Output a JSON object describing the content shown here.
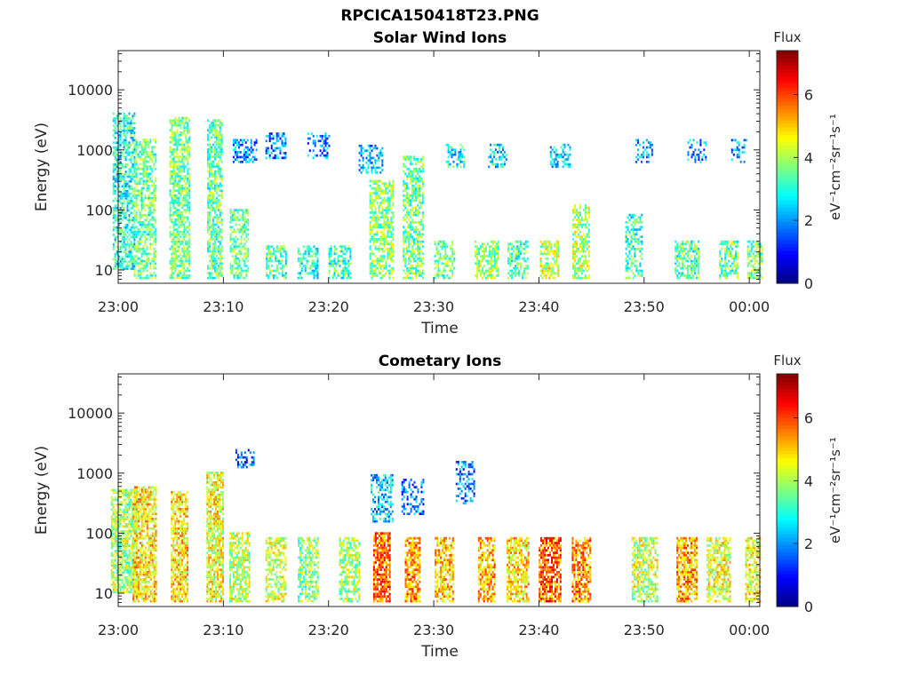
{
  "figure_title": "RPCICA150418T23.PNG",
  "chart_data": [
    {
      "type": "heatmap",
      "title": "Solar Wind Ions",
      "xlabel": "Time",
      "ylabel": "Energy (eV)",
      "y_scale": "log",
      "ylim": [
        6,
        45000
      ],
      "y_ticks": [
        10,
        100,
        1000,
        10000
      ],
      "y_tick_labels": [
        "10",
        "100",
        "1000",
        "10000"
      ],
      "x_ticks": [
        "23:00",
        "23:10",
        "23:20",
        "23:30",
        "23:40",
        "23:50",
        "00:00"
      ],
      "xlim": [
        "23:00",
        "00:01"
      ],
      "colorbar": {
        "title": "Flux",
        "label": "eV⁻¹cm⁻²sr⁻¹s⁻¹",
        "range": [
          0,
          7.4
        ],
        "ticks": [
          "0",
          "2",
          "4",
          "6"
        ],
        "colormap": "jet"
      },
      "clusters": [
        {
          "t": "23:00:30",
          "emin": 10,
          "emax": 4000,
          "flux": 3.0,
          "p": 0.6
        },
        {
          "t": "23:02:30",
          "emin": 7,
          "emax": 1500,
          "flux": 3.5,
          "p": 0.6
        },
        {
          "t": "23:05:50",
          "emin": 7,
          "emax": 3500,
          "flux": 3.6,
          "p": 0.7
        },
        {
          "t": "23:09:10",
          "emin": 7,
          "emax": 3000,
          "flux": 3.5,
          "p": 0.7
        },
        {
          "t": "23:11:30",
          "emin": 7,
          "emax": 100,
          "flux": 3.5,
          "p": 0.6
        },
        {
          "t": "23:12",
          "emin": 600,
          "emax": 1500,
          "flux": 2.0,
          "p": 0.5
        },
        {
          "t": "23:15",
          "emin": 7,
          "emax": 25,
          "flux": 3.3,
          "p": 0.6
        },
        {
          "t": "23:15",
          "emin": 700,
          "emax": 1800,
          "flux": 1.8,
          "p": 0.35
        },
        {
          "t": "23:19",
          "emin": 700,
          "emax": 1800,
          "flux": 1.8,
          "p": 0.35
        },
        {
          "t": "23:18",
          "emin": 7,
          "emax": 25,
          "flux": 3.0,
          "p": 0.5
        },
        {
          "t": "23:21",
          "emin": 7,
          "emax": 25,
          "flux": 3.3,
          "p": 0.55
        },
        {
          "t": "23:24",
          "emin": 400,
          "emax": 1200,
          "flux": 2.3,
          "p": 0.45
        },
        {
          "t": "23:25",
          "emin": 7,
          "emax": 300,
          "flux": 3.8,
          "p": 0.65
        },
        {
          "t": "23:28",
          "emin": 7,
          "emax": 800,
          "flux": 3.6,
          "p": 0.6
        },
        {
          "t": "23:31",
          "emin": 7,
          "emax": 30,
          "flux": 3.6,
          "p": 0.55
        },
        {
          "t": "23:32",
          "emin": 500,
          "emax": 1200,
          "flux": 2.8,
          "p": 0.5
        },
        {
          "t": "23:36",
          "emin": 500,
          "emax": 1200,
          "flux": 2.6,
          "p": 0.45
        },
        {
          "t": "23:35",
          "emin": 7,
          "emax": 30,
          "flux": 3.8,
          "p": 0.6
        },
        {
          "t": "23:38",
          "emin": 7,
          "emax": 30,
          "flux": 3.4,
          "p": 0.55
        },
        {
          "t": "23:41",
          "emin": 7,
          "emax": 30,
          "flux": 4.2,
          "p": 0.65
        },
        {
          "t": "23:42",
          "emin": 500,
          "emax": 1200,
          "flux": 2.5,
          "p": 0.45
        },
        {
          "t": "23:44",
          "emin": 7,
          "emax": 120,
          "flux": 4.0,
          "p": 0.6
        },
        {
          "t": "23:49",
          "emin": 7,
          "emax": 80,
          "flux": 3.2,
          "p": 0.5
        },
        {
          "t": "23:50",
          "emin": 600,
          "emax": 1500,
          "flux": 2.2,
          "p": 0.45
        },
        {
          "t": "23:54",
          "emin": 7,
          "emax": 30,
          "flux": 3.4,
          "p": 0.6
        },
        {
          "t": "23:55",
          "emin": 600,
          "emax": 1500,
          "flux": 2.0,
          "p": 0.4
        },
        {
          "t": "23:58",
          "emin": 7,
          "emax": 30,
          "flux": 3.5,
          "p": 0.6
        },
        {
          "t": "23:59",
          "emin": 600,
          "emax": 1500,
          "flux": 2.0,
          "p": 0.4
        },
        {
          "t": "00:00:30",
          "emin": 7,
          "emax": 30,
          "flux": 3.6,
          "p": 0.6
        }
      ]
    },
    {
      "type": "heatmap",
      "title": "Cometary Ions",
      "xlabel": "Time",
      "ylabel": "Energy (eV)",
      "y_scale": "log",
      "ylim": [
        6,
        45000
      ],
      "y_ticks": [
        10,
        100,
        1000,
        10000
      ],
      "y_tick_labels": [
        "10",
        "100",
        "1000",
        "10000"
      ],
      "x_ticks": [
        "23:00",
        "23:10",
        "23:20",
        "23:30",
        "23:40",
        "23:50",
        "00:00"
      ],
      "xlim": [
        "23:00",
        "00:01"
      ],
      "colorbar": {
        "title": "Flux",
        "label": "eV⁻¹cm⁻²sr⁻¹s⁻¹",
        "range": [
          0,
          7.4
        ],
        "ticks": [
          "0",
          "2",
          "4",
          "6"
        ],
        "colormap": "jet"
      },
      "clusters": [
        {
          "t": "23:00:30",
          "emin": 10,
          "emax": 500,
          "flux": 4.0,
          "p": 0.7
        },
        {
          "t": "23:02:30",
          "emin": 7,
          "emax": 600,
          "flux": 4.8,
          "p": 0.7
        },
        {
          "t": "23:05:50",
          "emin": 7,
          "emax": 500,
          "flux": 4.8,
          "p": 0.75
        },
        {
          "t": "23:09:10",
          "emin": 7,
          "emax": 1000,
          "flux": 4.5,
          "p": 0.75
        },
        {
          "t": "23:11:30",
          "emin": 7,
          "emax": 100,
          "flux": 4.2,
          "p": 0.65
        },
        {
          "t": "23:12",
          "emin": 1200,
          "emax": 2500,
          "flux": 1.5,
          "p": 0.35
        },
        {
          "t": "23:15",
          "emin": 7,
          "emax": 80,
          "flux": 4.2,
          "p": 0.6
        },
        {
          "t": "23:18",
          "emin": 7,
          "emax": 80,
          "flux": 3.8,
          "p": 0.6
        },
        {
          "t": "23:22",
          "emin": 7,
          "emax": 80,
          "flux": 4.0,
          "p": 0.6
        },
        {
          "t": "23:25",
          "emin": 7,
          "emax": 100,
          "flux": 5.8,
          "p": 0.8
        },
        {
          "t": "23:25",
          "emin": 150,
          "emax": 900,
          "flux": 2.4,
          "p": 0.5
        },
        {
          "t": "23:28",
          "emin": 7,
          "emax": 80,
          "flux": 5.4,
          "p": 0.75
        },
        {
          "t": "23:28",
          "emin": 200,
          "emax": 800,
          "flux": 1.8,
          "p": 0.4
        },
        {
          "t": "23:31",
          "emin": 7,
          "emax": 80,
          "flux": 5.0,
          "p": 0.65
        },
        {
          "t": "23:33",
          "emin": 300,
          "emax": 1500,
          "flux": 1.8,
          "p": 0.4
        },
        {
          "t": "23:35",
          "emin": 7,
          "emax": 80,
          "flux": 5.2,
          "p": 0.7
        },
        {
          "t": "23:38",
          "emin": 7,
          "emax": 80,
          "flux": 4.8,
          "p": 0.7
        },
        {
          "t": "23:41",
          "emin": 7,
          "emax": 80,
          "flux": 5.8,
          "p": 0.75
        },
        {
          "t": "23:44",
          "emin": 7,
          "emax": 80,
          "flux": 5.4,
          "p": 0.7
        },
        {
          "t": "23:50",
          "emin": 7,
          "emax": 80,
          "flux": 4.2,
          "p": 0.65
        },
        {
          "t": "23:54",
          "emin": 7,
          "emax": 80,
          "flux": 5.2,
          "p": 0.7
        },
        {
          "t": "23:57",
          "emin": 7,
          "emax": 80,
          "flux": 4.5,
          "p": 0.65
        },
        {
          "t": "00:00:20",
          "emin": 7,
          "emax": 80,
          "flux": 4.5,
          "p": 0.65
        }
      ]
    }
  ]
}
